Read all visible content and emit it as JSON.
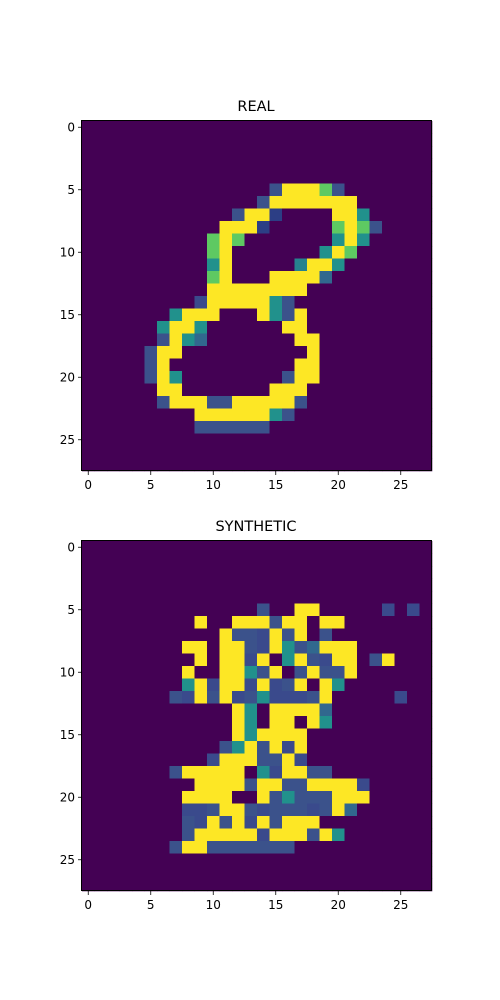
{
  "chart_data": [
    {
      "type": "heatmap",
      "title": "REAL",
      "colormap": "viridis",
      "xlim": [
        -0.5,
        27.5
      ],
      "ylim": [
        27.5,
        -0.5
      ],
      "xticks": [
        0,
        5,
        10,
        15,
        20,
        25
      ],
      "yticks": [
        0,
        5,
        10,
        15,
        20,
        25
      ],
      "grid": false,
      "rows": [
        "............................",
        "............................",
        "............................",
        "............................",
        "............................",
        "...............bfffgb.......",
        "..............bfffffff......",
        "............bffmaaaaffh.....",
        "...........fffmaaaaagfgb....",
        "..........gfgaaaaaaahfh.....",
        "..........gfaaaaaaahfg......",
        "..........hfaaaaaeffh.......",
        "..........gfaaaffffd........",
        "..........ffffffffa.........",
        ".........cfffffhb...........",
        ".......hfffaaafhbf..........",
        "......hffhaaaaaaff..........",
        "......bfhdaaaaaaaff.........",
        ".....bffaaaaaaaaaaf.........",
        ".....bfaaaaaaaaaaffa........",
        ".....bfhaaaaaaaabff.........",
        "......ffaaaaaaafffa.........",
        "......bfffbbfffffb..........",
        ".......aaffffffhb...........",
        "........abbbbbb.............",
        "............................",
        "............................",
        "............................"
      ]
    },
    {
      "type": "heatmap",
      "title": "SYNTHETIC",
      "colormap": "viridis",
      "xlim": [
        -0.5,
        27.5
      ],
      "ylim": [
        27.5,
        -0.5
      ],
      "xticks": [
        0,
        5,
        10,
        15,
        20,
        25
      ],
      "yticks": [
        0,
        5,
        10,
        15,
        20,
        25
      ],
      "grid": false,
      "rows": [
        "............................",
        "............................",
        "............................",
        "............................",
        "............................",
        "..............b..ff.....c.c.",
        ".........f..fffbff.ff.......",
        "...........fbbcfbfab........",
        "........ff.ffbcfhbdfff......",
        ".........f.ffcfahfbcff.bf...",
        "........f..ffhbfabfbbf......",
        "........hfcffcfcbfafh.......",
        ".......bcfbfcbhcccbf.....c..",
        "............fhaffffda.......",
        "............fhaffafh........",
        "............fhffff..........",
        "...........bhfbfcf..........",
        "..........cfffbbfc..........",
        ".......bfffffahcffbb........",
        ".........ffffbffbbffffc.....",
        "........ffffaafbhbbbfff.....",
        "........ccbffbcbbbcbfd......",
        "........bcfbfcfbfff.........",
        "........bfffffcfffbfh.......",
        ".......bffbbbbbbb...........",
        "............................",
        "............................",
        "............................"
      ]
    }
  ]
}
